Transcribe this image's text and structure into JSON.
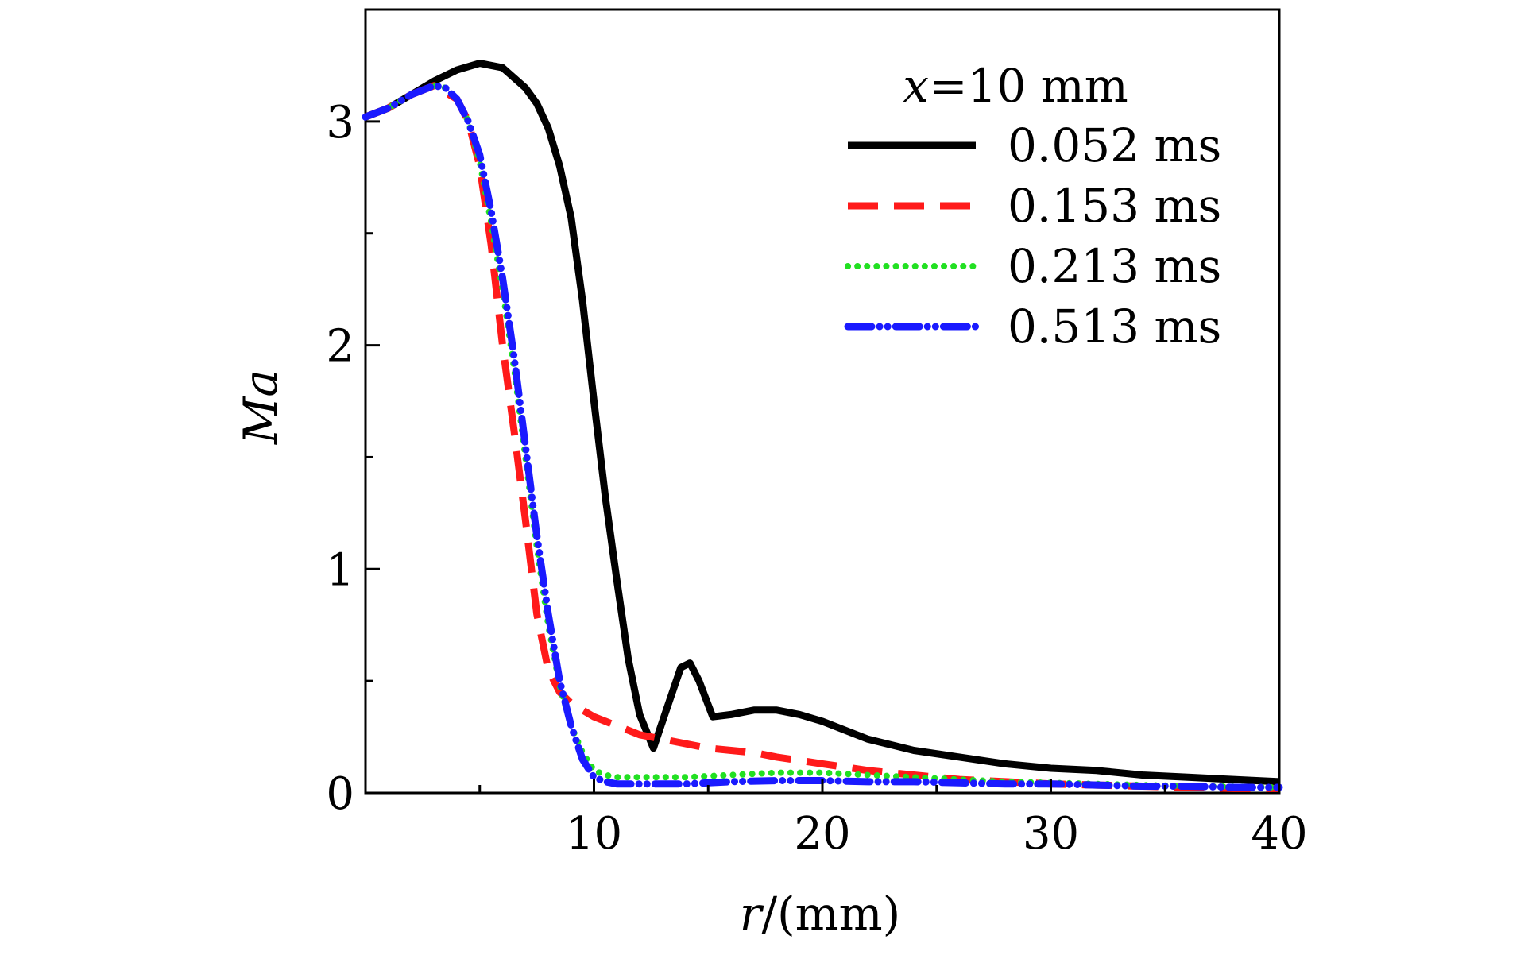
{
  "chart_data": {
    "type": "line",
    "title": "",
    "legend_title_var": "x",
    "legend_title_rest": "=10 mm",
    "xlabel_var": "r",
    "xlabel_rest": "/(mm)",
    "ylabel": "Ma",
    "xlim": [
      0,
      40
    ],
    "ylim": [
      0,
      3.5
    ],
    "xticks": [
      10,
      20,
      30,
      40
    ],
    "yticks": [
      0,
      1,
      2,
      3
    ],
    "xtick_labels": [
      "10",
      "20",
      "30",
      "40"
    ],
    "ytick_labels": [
      "0",
      "1",
      "2",
      "3"
    ],
    "legend_position": "top-right",
    "series": [
      {
        "name": "0.052 ms",
        "color": "#000000",
        "style": "solid",
        "x": [
          0,
          1,
          2,
          3,
          4,
          5,
          6,
          7,
          7.5,
          8,
          8.5,
          9,
          9.5,
          10,
          10.5,
          11,
          11.5,
          12,
          12.6,
          13.2,
          13.8,
          14.2,
          14.6,
          15.2,
          16,
          17,
          18,
          19,
          20,
          22,
          24,
          26,
          28,
          30,
          32,
          34,
          36,
          38,
          40
        ],
        "y": [
          3.02,
          3.06,
          3.12,
          3.18,
          3.23,
          3.26,
          3.24,
          3.15,
          3.08,
          2.97,
          2.8,
          2.57,
          2.2,
          1.75,
          1.32,
          0.95,
          0.6,
          0.35,
          0.2,
          0.38,
          0.56,
          0.58,
          0.5,
          0.34,
          0.35,
          0.37,
          0.37,
          0.35,
          0.32,
          0.24,
          0.19,
          0.16,
          0.13,
          0.11,
          0.1,
          0.08,
          0.07,
          0.06,
          0.05
        ]
      },
      {
        "name": "0.153 ms",
        "color": "#ff1a1a",
        "style": "dashed",
        "x": [
          0,
          1,
          2,
          3,
          4,
          4.5,
          5,
          5.5,
          6,
          6.5,
          7,
          7.5,
          8,
          8.5,
          9,
          10,
          11,
          12,
          13,
          14,
          15,
          16,
          17,
          18,
          20,
          22,
          24,
          26,
          28,
          30,
          32,
          34,
          36,
          38,
          40
        ],
        "y": [
          3.02,
          3.06,
          3.12,
          3.16,
          3.1,
          3.0,
          2.8,
          2.45,
          2.0,
          1.62,
          1.22,
          0.8,
          0.55,
          0.45,
          0.4,
          0.34,
          0.3,
          0.26,
          0.24,
          0.22,
          0.2,
          0.19,
          0.18,
          0.16,
          0.13,
          0.1,
          0.08,
          0.06,
          0.05,
          0.04,
          0.035,
          0.03,
          0.025,
          0.02,
          0.02
        ]
      },
      {
        "name": "0.213 ms",
        "color": "#22e022",
        "style": "dotted",
        "x": [
          0,
          1,
          2,
          3,
          3.5,
          4,
          4.5,
          5,
          5.5,
          6,
          6.5,
          7,
          7.5,
          8,
          8.5,
          9,
          9.5,
          10,
          10.5,
          11,
          12,
          14,
          16,
          18,
          20,
          22,
          24,
          26,
          28,
          30,
          32,
          34,
          36,
          38,
          40
        ],
        "y": [
          3.02,
          3.06,
          3.12,
          3.16,
          3.15,
          3.1,
          3.0,
          2.82,
          2.55,
          2.25,
          1.9,
          1.5,
          1.1,
          0.75,
          0.48,
          0.3,
          0.18,
          0.1,
          0.08,
          0.07,
          0.07,
          0.07,
          0.08,
          0.09,
          0.09,
          0.08,
          0.07,
          0.06,
          0.05,
          0.045,
          0.04,
          0.035,
          0.03,
          0.028,
          0.025
        ]
      },
      {
        "name": "0.513 ms",
        "color": "#1a1aff",
        "style": "dashdot",
        "x": [
          0,
          1,
          2,
          3,
          3.5,
          4,
          4.5,
          5,
          5.5,
          6,
          6.5,
          7,
          7.5,
          8,
          8.5,
          9,
          9.5,
          10,
          10.5,
          11,
          12,
          14,
          16,
          18,
          20,
          22,
          24,
          26,
          28,
          30,
          32,
          34,
          36,
          38,
          40
        ],
        "y": [
          3.02,
          3.06,
          3.12,
          3.16,
          3.15,
          3.1,
          3.0,
          2.85,
          2.6,
          2.3,
          1.95,
          1.55,
          1.15,
          0.8,
          0.5,
          0.3,
          0.15,
          0.07,
          0.05,
          0.04,
          0.04,
          0.04,
          0.05,
          0.055,
          0.055,
          0.05,
          0.05,
          0.045,
          0.04,
          0.04,
          0.035,
          0.03,
          0.03,
          0.025,
          0.025
        ]
      }
    ]
  }
}
